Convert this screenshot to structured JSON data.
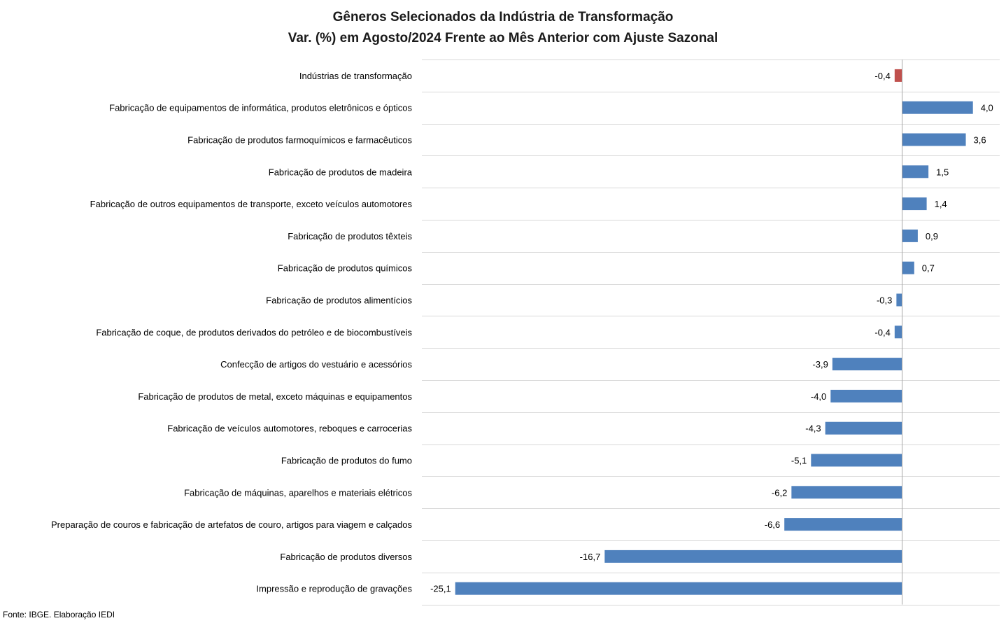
{
  "chart_data": {
    "type": "bar",
    "orientation": "horizontal",
    "title": "Gêneros Selecionados da Indústria de Transformação",
    "subtitle": "Var. (%) em Agosto/2024 Frente ao Mês Anterior com Ajuste Sazonal",
    "xlabel": "",
    "ylabel": "",
    "xlim": [
      -26,
      5.5
    ],
    "grid": "horizontal separators between categories",
    "categories": [
      "Indústrias de transformação",
      "Fabricação de equipamentos de informática, produtos eletrônicos e ópticos",
      "Fabricação de produtos farmoquímicos e farmacêuticos",
      "Fabricação de produtos de madeira",
      "Fabricação de outros equipamentos de transporte, exceto veículos automotores",
      "Fabricação de produtos têxteis",
      "Fabricação de produtos químicos",
      "Fabricação de produtos alimentícios",
      "Fabricação de coque, de produtos derivados do petróleo e de biocombustíveis",
      "Confecção de artigos do vestuário e acessórios",
      "Fabricação de produtos de metal, exceto máquinas e equipamentos",
      "Fabricação de veículos automotores, reboques e carrocerias",
      "Fabricação de produtos do fumo",
      "Fabricação de máquinas, aparelhos e materiais elétricos",
      "Preparação de couros e fabricação de artefatos de couro, artigos para viagem e calçados",
      "Fabricação de produtos diversos",
      "Impressão e reprodução de gravações"
    ],
    "values": [
      -0.4,
      4.0,
      3.6,
      1.5,
      1.4,
      0.9,
      0.7,
      -0.3,
      -0.4,
      -3.9,
      -4.0,
      -4.3,
      -5.1,
      -6.2,
      -6.6,
      -16.7,
      -25.1
    ],
    "value_labels": [
      "-0,4",
      "4,0",
      "3,6",
      "1,5",
      "1,4",
      "0,9",
      "0,7",
      "-0,3",
      "-0,4",
      "-3,9",
      "-4,0",
      "-4,3",
      "-5,1",
      "-6,2",
      "-6,6",
      "-16,7",
      "-25,1"
    ],
    "bar_colors": [
      "#C0504D",
      "#4F81BD",
      "#4F81BD",
      "#4F81BD",
      "#4F81BD",
      "#4F81BD",
      "#4F81BD",
      "#4F81BD",
      "#4F81BD",
      "#4F81BD",
      "#4F81BD",
      "#4F81BD",
      "#4F81BD",
      "#4F81BD",
      "#4F81BD",
      "#4F81BD",
      "#4F81BD"
    ],
    "grid_color": "#D9D9D9",
    "axis_color": "#A6A6A6"
  },
  "source": "Fonte: IBGE. Elaboração IEDI"
}
